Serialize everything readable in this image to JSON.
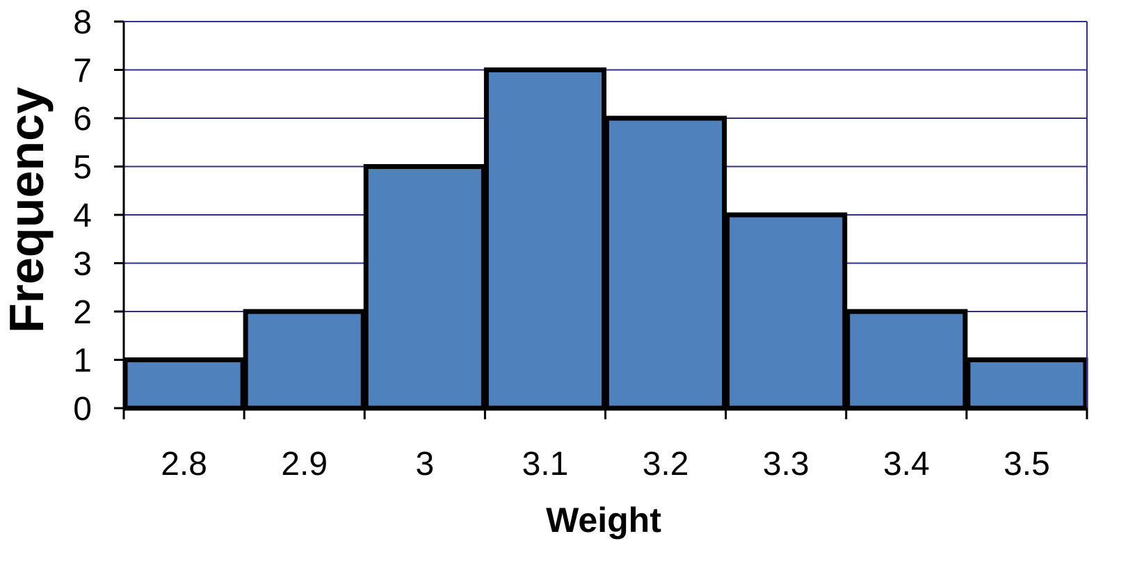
{
  "chart_data": {
    "type": "bar",
    "categories": [
      "2.8",
      "2.9",
      "3",
      "3.1",
      "3.2",
      "3.3",
      "3.4",
      "3.5"
    ],
    "values": [
      1,
      2,
      5,
      7,
      6,
      4,
      2,
      1
    ],
    "xlabel": "Weight",
    "ylabel": "Frequency",
    "ylim": [
      0,
      8
    ],
    "yticks": [
      "0",
      "1",
      "2",
      "3",
      "4",
      "5",
      "6",
      "7",
      "8"
    ],
    "grid": true,
    "bar_gap": false,
    "colors": {
      "bar_fill": "#4F81BD",
      "bar_stroke": "#000000",
      "gridline": "#2E2E8F",
      "axis": "#000000"
    }
  }
}
